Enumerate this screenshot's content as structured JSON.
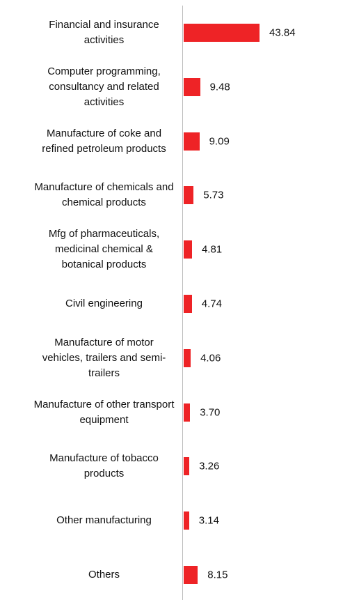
{
  "chart_data": {
    "type": "hbar",
    "categories": [
      "Financial and insurance activities",
      "Computer programming, consultancy and related activities",
      "Manufacture of coke and refined petroleum products",
      "Manufacture of chemicals and chemical products",
      "Mfg of pharmaceuticals, medicinal chemical & botanical products",
      "Civil engineering",
      "Manufacture of motor vehicles, trailers and semi-trailers",
      "Manufacture of other transport equipment",
      "Manufacture of tobacco products",
      "Other manufacturing",
      "Others"
    ],
    "values": [
      43.84,
      9.48,
      9.09,
      5.73,
      4.81,
      4.74,
      4.06,
      3.7,
      3.26,
      3.14,
      8.15
    ],
    "value_labels": [
      "43.84",
      "9.48",
      "9.09",
      "5.73",
      "4.81",
      "4.74",
      "4.06",
      "3.70",
      "3.26",
      "3.14",
      "8.15"
    ],
    "color": "#ee2326"
  }
}
